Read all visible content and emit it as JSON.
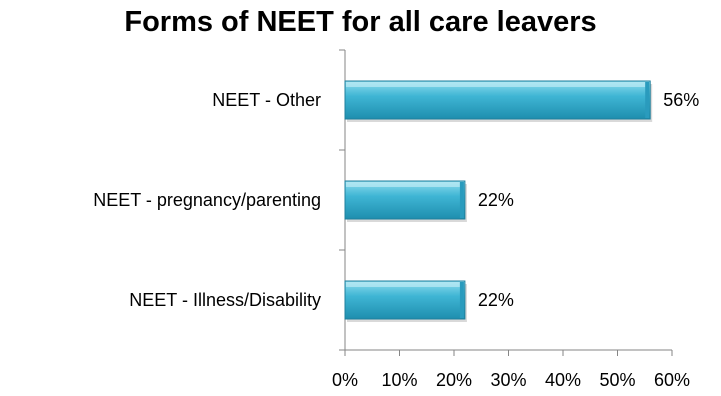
{
  "chart_data": {
    "type": "bar",
    "orientation": "horizontal",
    "title": "Forms of NEET for all care leavers",
    "categories": [
      "NEET - Other",
      "NEET - pregnancy/parenting",
      "NEET - Illness/Disability"
    ],
    "values": [
      56,
      22,
      22
    ],
    "data_labels": [
      "56%",
      "22%",
      "22%"
    ],
    "xlim": [
      0,
      60
    ],
    "x_ticks": [
      0,
      10,
      20,
      30,
      40,
      50,
      60
    ],
    "x_tick_labels": [
      "0%",
      "10%",
      "20%",
      "30%",
      "40%",
      "50%",
      "60%"
    ],
    "xlabel": "",
    "ylabel": "",
    "grid": false,
    "legend": "none",
    "bar_color": "#3FB5D4"
  }
}
